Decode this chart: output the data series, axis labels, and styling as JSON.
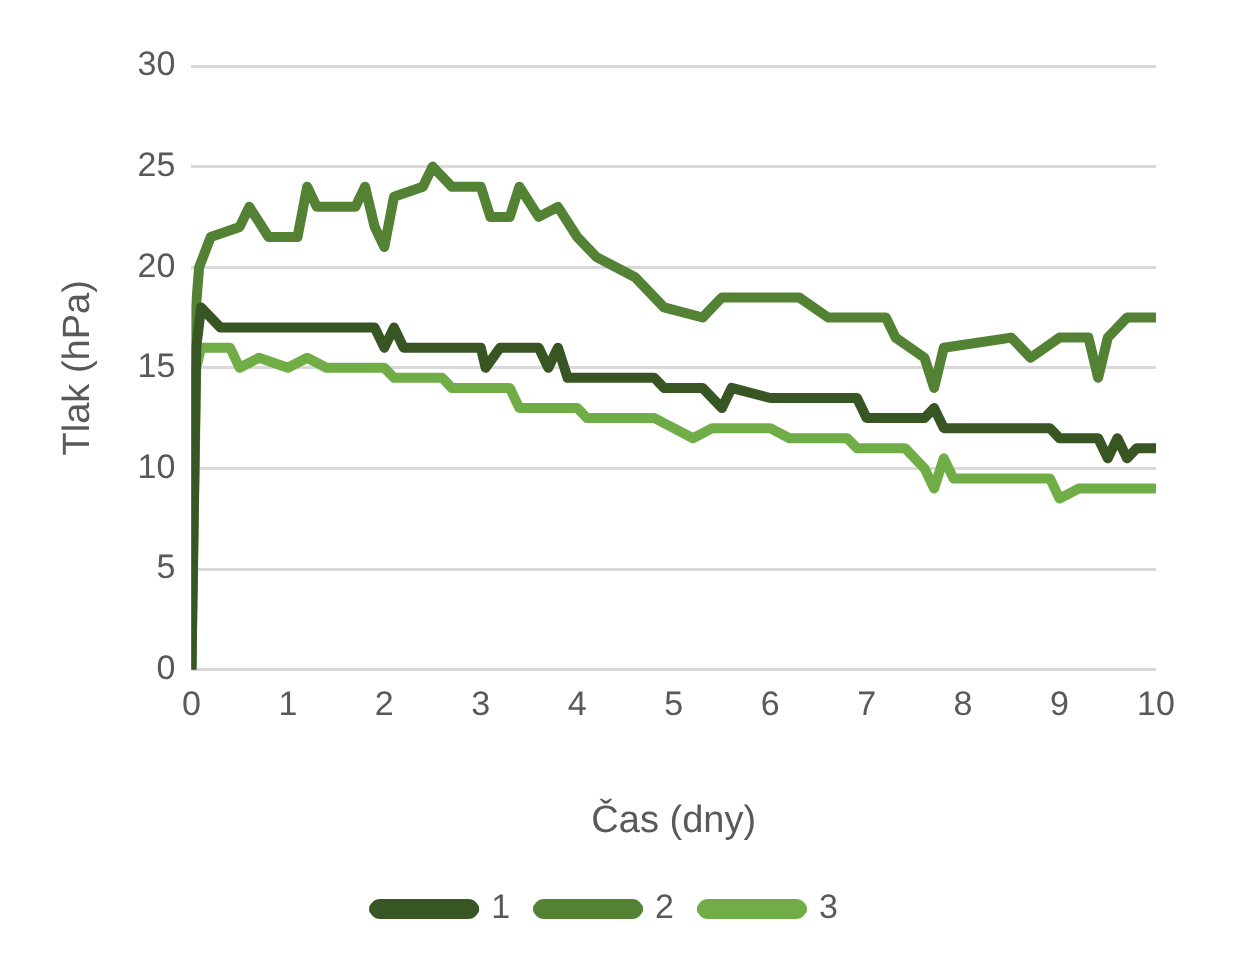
{
  "chart_data": {
    "type": "line",
    "xlabel": "Čas (dny)",
    "ylabel": "Tlak (hPa)",
    "xlim": [
      0,
      10
    ],
    "xticks": [
      0,
      1,
      2,
      3,
      4,
      5,
      6,
      7,
      8,
      9,
      10
    ],
    "ylim": [
      0,
      30
    ],
    "yticks": [
      0,
      5,
      10,
      15,
      20,
      25,
      30
    ],
    "grid": "y",
    "legend": "bottom",
    "marker": "none",
    "line_style": "solid",
    "series": [
      {
        "name": "1",
        "color": "#375623",
        "x": [
          0,
          0.05,
          0.1,
          0.3,
          1.9,
          2.0,
          2.1,
          2.2,
          3.0,
          3.05,
          3.2,
          3.6,
          3.7,
          3.8,
          3.9,
          4.8,
          4.9,
          5.3,
          5.5,
          5.6,
          6.0,
          6.9,
          7.0,
          7.6,
          7.7,
          7.8,
          8.9,
          9.0,
          9.4,
          9.5,
          9.6,
          9.7,
          9.8,
          10
        ],
        "values": [
          0,
          16,
          18,
          17,
          17,
          16,
          17,
          16,
          16,
          15,
          16,
          16,
          15,
          16,
          14.5,
          14.5,
          14,
          14,
          13,
          14,
          13.5,
          13.5,
          12.5,
          12.5,
          13,
          12,
          12,
          11.5,
          11.5,
          10.5,
          11.5,
          10.5,
          11,
          11
        ]
      },
      {
        "name": "2",
        "color": "#548235",
        "x": [
          0,
          0.03,
          0.08,
          0.2,
          0.5,
          0.6,
          0.8,
          1.1,
          1.2,
          1.3,
          1.7,
          1.8,
          1.9,
          2.0,
          2.1,
          2.4,
          2.5,
          2.7,
          3.0,
          3.1,
          3.3,
          3.4,
          3.6,
          3.8,
          4.0,
          4.2,
          4.6,
          4.9,
          5.3,
          5.5,
          6.3,
          6.6,
          7.2,
          7.3,
          7.6,
          7.7,
          7.8,
          8.5,
          8.7,
          9.0,
          9.3,
          9.4,
          9.5,
          9.7,
          10
        ],
        "values": [
          0,
          17,
          20,
          21.5,
          22,
          23,
          21.5,
          21.5,
          24,
          23,
          23,
          24,
          22,
          21,
          23.5,
          24,
          25,
          24,
          24,
          22.5,
          22.5,
          24,
          22.5,
          23,
          21.5,
          20.5,
          19.5,
          18,
          17.5,
          18.5,
          18.5,
          17.5,
          17.5,
          16.5,
          15.5,
          14,
          16,
          16.5,
          15.5,
          16.5,
          16.5,
          14.5,
          16.5,
          17.5,
          17.5
        ]
      },
      {
        "name": "3",
        "color": "#70ad47",
        "x": [
          0,
          0.05,
          0.1,
          0.4,
          0.5,
          0.7,
          1.0,
          1.2,
          1.4,
          2.0,
          2.1,
          2.6,
          2.7,
          3.3,
          3.4,
          4.0,
          4.1,
          4.8,
          5.0,
          5.2,
          5.4,
          6.0,
          6.2,
          6.8,
          6.9,
          7.4,
          7.6,
          7.7,
          7.8,
          7.9,
          8.9,
          9.0,
          9.2,
          10
        ],
        "values": [
          0,
          15,
          16,
          16,
          15,
          15.5,
          15,
          15.5,
          15,
          15,
          14.5,
          14.5,
          14,
          14,
          13,
          13,
          12.5,
          12.5,
          12,
          11.5,
          12,
          12,
          11.5,
          11.5,
          11,
          11,
          10,
          9,
          10.5,
          9.5,
          9.5,
          8.5,
          9,
          9
        ]
      }
    ]
  }
}
